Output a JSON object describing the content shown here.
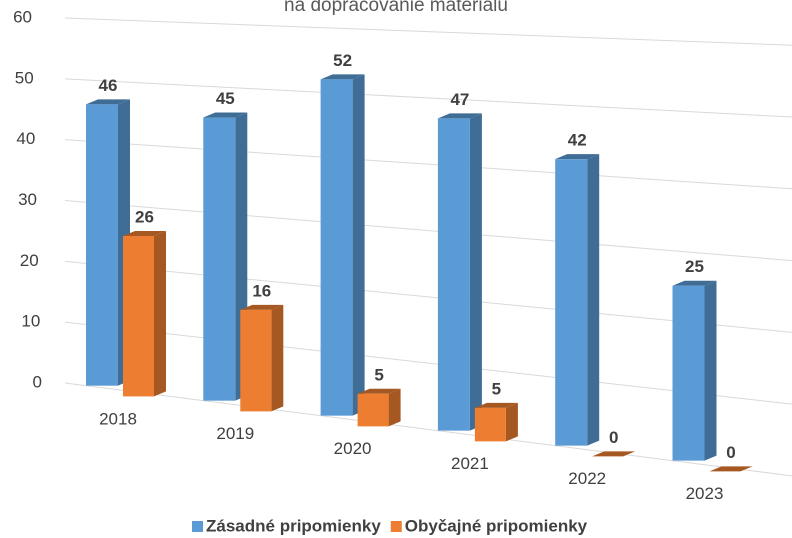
{
  "chart_data": {
    "type": "bar3d",
    "title": "na dopracovanie materiálu",
    "categories": [
      "2018",
      "2019",
      "2020",
      "2021",
      "2022",
      "2023"
    ],
    "series": [
      {
        "name": "Zásadné pripomienky",
        "color": "#5b9bd5",
        "values": [
          46,
          45,
          52,
          47,
          42,
          25
        ]
      },
      {
        "name": "Obyčajné pripomienky",
        "color": "#ed7d31",
        "values": [
          26,
          16,
          5,
          5,
          0,
          0
        ]
      }
    ],
    "ylim": [
      0,
      60
    ],
    "yticks": [
      0,
      10,
      20,
      30,
      40,
      50,
      60
    ],
    "grid": true,
    "legend": "bottom"
  }
}
